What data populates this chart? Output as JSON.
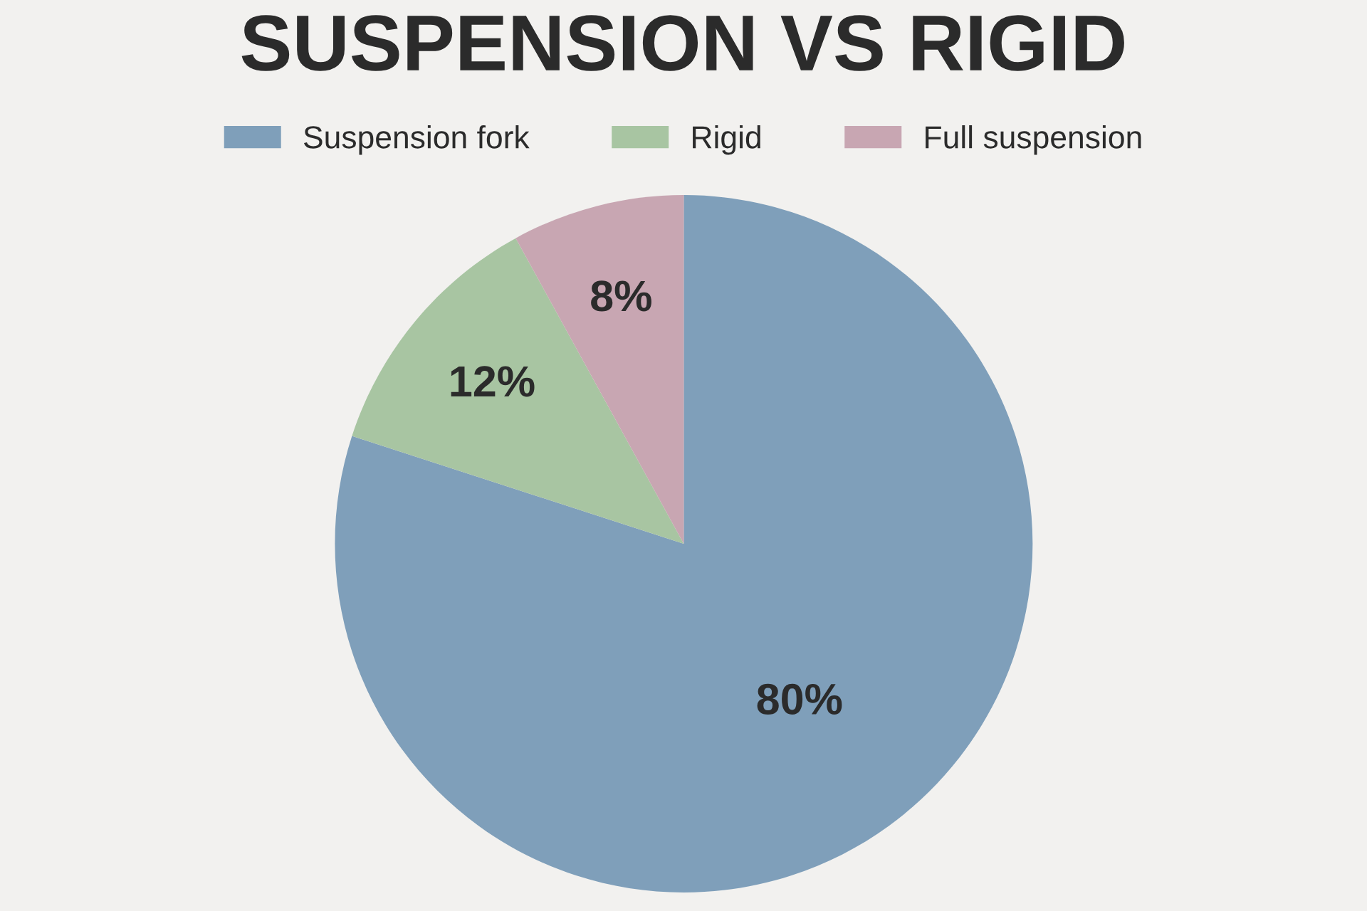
{
  "chart_data": {
    "type": "pie",
    "title": "SUSPENSION VS RIGID",
    "categories": [
      "Suspension fork",
      "Rigid",
      "Full suspension"
    ],
    "values": [
      80,
      12,
      8
    ],
    "colors": [
      "#7f9fba",
      "#a8c5a2",
      "#c8a6b2"
    ],
    "value_labels": [
      "80%",
      "12%",
      "8%"
    ],
    "legend": "top"
  }
}
